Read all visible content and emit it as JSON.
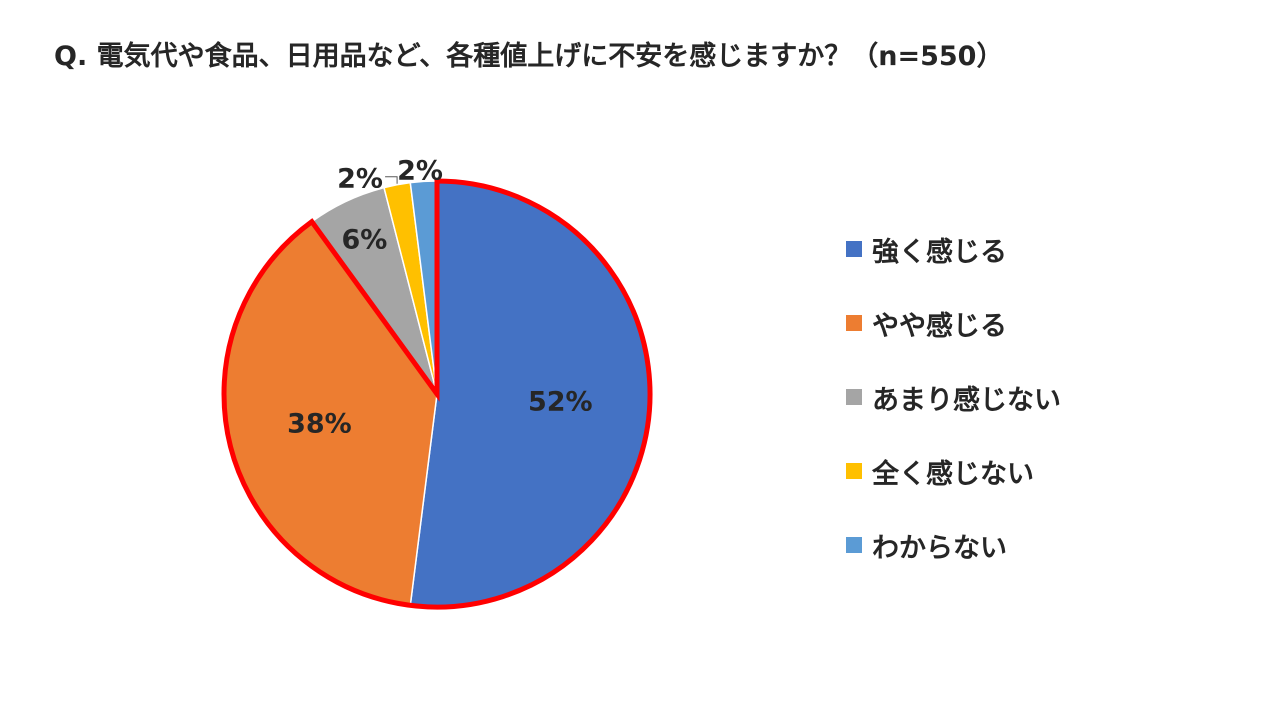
{
  "title": "Q. 電気代や食品、日用品など、各種値上げに不安を感じますか？（n=550）",
  "chart_data": {
    "type": "pie",
    "categories": [
      "強く感じる",
      "やや感じる",
      "あまり感じない",
      "全く感じない",
      "わからない"
    ],
    "values": [
      52,
      38,
      6,
      2,
      2
    ],
    "data_labels": [
      "52%",
      "38%",
      "6%",
      "2%",
      "2%"
    ],
    "colors": [
      "#4472C4",
      "#ED7D31",
      "#A5A5A5",
      "#FFC000",
      "#5B9BD5"
    ],
    "highlight": {
      "slices": [
        "強く感じる",
        "やや感じる"
      ],
      "color": "#FF0000"
    },
    "legend_position": "right"
  }
}
